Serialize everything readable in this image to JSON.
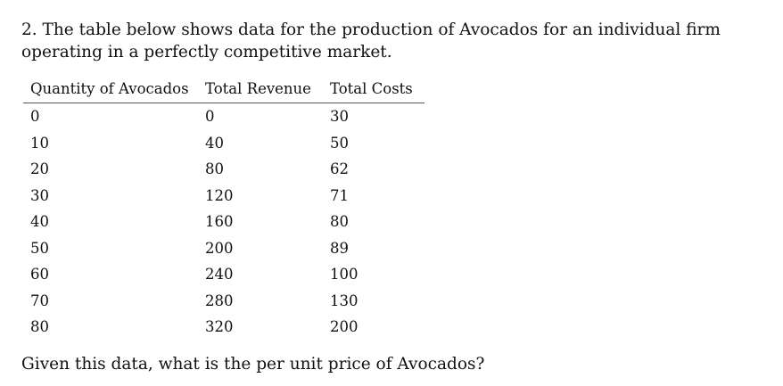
{
  "question": {
    "text": "2. The table below shows data for the production of Avocados for an individual firm operating in a perfectly competitive market."
  },
  "table": {
    "headers": [
      "Quantity of Avocados",
      "Total Revenue",
      "Total Costs"
    ],
    "rows": [
      [
        "0",
        "0",
        "30"
      ],
      [
        "10",
        "40",
        "50"
      ],
      [
        "20",
        "80",
        "62"
      ],
      [
        "30",
        "120",
        "71"
      ],
      [
        "40",
        "160",
        "80"
      ],
      [
        "50",
        "200",
        "89"
      ],
      [
        "60",
        "240",
        "100"
      ],
      [
        "70",
        "280",
        "130"
      ],
      [
        "80",
        "320",
        "200"
      ]
    ]
  },
  "prompt": {
    "text": "Given this data, what is the per unit price of Avocados?"
  }
}
